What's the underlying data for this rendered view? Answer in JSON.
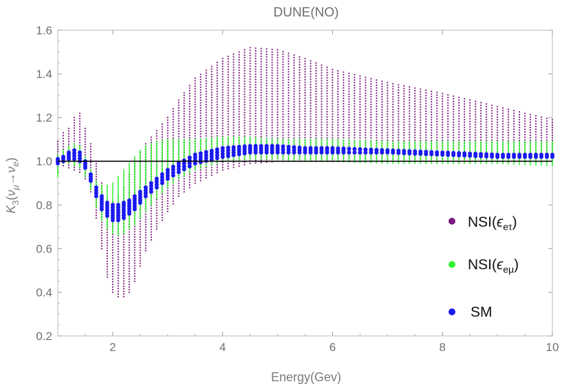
{
  "chart_data": {
    "type": "scatter",
    "title": "DUNE(NO)",
    "xlabel": "Energy(Gev)",
    "ylabel_parts": {
      "base": "K",
      "sub": "3",
      "open": "(",
      "nu1": "ν",
      "nu1_sub": "μ",
      "arrow": "→",
      "nu2": "ν",
      "nu2_sub": "e",
      "close": ")"
    },
    "xlim": [
      1,
      10
    ],
    "ylim": [
      0.2,
      1.6
    ],
    "x_ticks": [
      2,
      4,
      6,
      8,
      10
    ],
    "x_tick_labels": [
      "2",
      "4",
      "6",
      "8",
      "10"
    ],
    "y_ticks": [
      0.2,
      0.4,
      0.6,
      0.8,
      1.0,
      1.2,
      1.4,
      1.6
    ],
    "y_tick_labels": [
      "0.2",
      "0.4",
      "0.6",
      "0.8",
      "1.0",
      "1.2",
      "1.4",
      "1.6"
    ],
    "grid": false,
    "reference_line_y": 1.0,
    "legend_placement": "right",
    "series": [
      {
        "name": "NSI(ϵeτ)",
        "legend_base": "NSI(",
        "legend_symbol": "ϵ",
        "legend_sub": "eτ",
        "legend_close": ")",
        "color": "#7b1a7e",
        "x": [
          1.0,
          1.1,
          1.2,
          1.3,
          1.4,
          1.5,
          1.6,
          1.7,
          1.8,
          1.9,
          2.0,
          2.1,
          2.2,
          2.3,
          2.4,
          2.5,
          2.6,
          2.8,
          3.0,
          3.2,
          3.5,
          4.0,
          4.5,
          5.0,
          5.5,
          6.0,
          7.0,
          8.0,
          9.0,
          10.0
        ],
        "y_min": [
          0.95,
          0.98,
          0.97,
          0.96,
          0.95,
          0.92,
          0.86,
          0.74,
          0.6,
          0.47,
          0.4,
          0.38,
          0.38,
          0.4,
          0.45,
          0.52,
          0.59,
          0.69,
          0.77,
          0.84,
          0.9,
          0.96,
          0.99,
          1.0,
          1.0,
          1.0,
          1.0,
          1.0,
          1.0,
          1.0
        ],
        "y_max": [
          1.09,
          1.13,
          1.15,
          1.2,
          1.22,
          1.15,
          1.08,
          1.0,
          0.9,
          0.83,
          0.81,
          0.84,
          0.88,
          0.94,
          1.0,
          1.04,
          1.08,
          1.14,
          1.2,
          1.28,
          1.38,
          1.47,
          1.52,
          1.51,
          1.47,
          1.42,
          1.36,
          1.31,
          1.25,
          1.19
        ]
      },
      {
        "name": "NSI(ϵeμ)",
        "legend_base": "NSI(",
        "legend_symbol": "ϵ",
        "legend_sub": "eμ",
        "legend_close": ")",
        "color": "#2ff52f",
        "x": [
          1.0,
          1.1,
          1.2,
          1.3,
          1.4,
          1.5,
          1.6,
          1.7,
          1.8,
          1.9,
          2.0,
          2.1,
          2.2,
          2.3,
          2.4,
          2.5,
          2.6,
          2.8,
          3.0,
          3.2,
          3.5,
          4.0,
          4.5,
          5.0,
          5.5,
          6.0,
          7.0,
          8.0,
          9.0,
          10.0
        ],
        "y_min": [
          0.93,
          0.99,
          0.99,
          0.98,
          0.97,
          0.93,
          0.87,
          0.79,
          0.73,
          0.69,
          0.67,
          0.66,
          0.67,
          0.69,
          0.71,
          0.74,
          0.77,
          0.83,
          0.88,
          0.92,
          0.96,
          1.0,
          1.01,
          1.01,
          1.0,
          1.0,
          0.99,
          0.99,
          0.99,
          0.98
        ],
        "y_max": [
          1.03,
          1.05,
          1.07,
          1.08,
          1.07,
          1.02,
          0.96,
          0.91,
          0.89,
          0.89,
          0.9,
          0.93,
          0.96,
          0.99,
          1.02,
          1.05,
          1.07,
          1.09,
          1.1,
          1.1,
          1.1,
          1.11,
          1.11,
          1.1,
          1.1,
          1.1,
          1.09,
          1.09,
          1.09,
          1.09
        ]
      },
      {
        "name": "SM",
        "color": "#1a1aee",
        "x": [
          1.0,
          1.1,
          1.2,
          1.3,
          1.4,
          1.5,
          1.6,
          1.7,
          1.8,
          1.9,
          2.0,
          2.1,
          2.2,
          2.3,
          2.4,
          2.5,
          2.6,
          2.8,
          3.0,
          3.2,
          3.5,
          4.0,
          4.5,
          5.0,
          5.5,
          6.0,
          7.0,
          8.0,
          9.0,
          10.0
        ],
        "y_min": [
          0.99,
          1.0,
          1.01,
          1.01,
          1.0,
          0.97,
          0.91,
          0.84,
          0.78,
          0.75,
          0.73,
          0.73,
          0.74,
          0.76,
          0.78,
          0.81,
          0.84,
          0.88,
          0.92,
          0.95,
          0.99,
          1.02,
          1.04,
          1.04,
          1.04,
          1.04,
          1.04,
          1.03,
          1.02,
          1.02
        ],
        "y_max": [
          1.01,
          1.02,
          1.04,
          1.05,
          1.04,
          1.0,
          0.94,
          0.88,
          0.84,
          0.81,
          0.8,
          0.8,
          0.81,
          0.82,
          0.84,
          0.86,
          0.88,
          0.92,
          0.96,
          0.99,
          1.03,
          1.06,
          1.07,
          1.07,
          1.06,
          1.06,
          1.05,
          1.04,
          1.03,
          1.03
        ]
      }
    ]
  }
}
